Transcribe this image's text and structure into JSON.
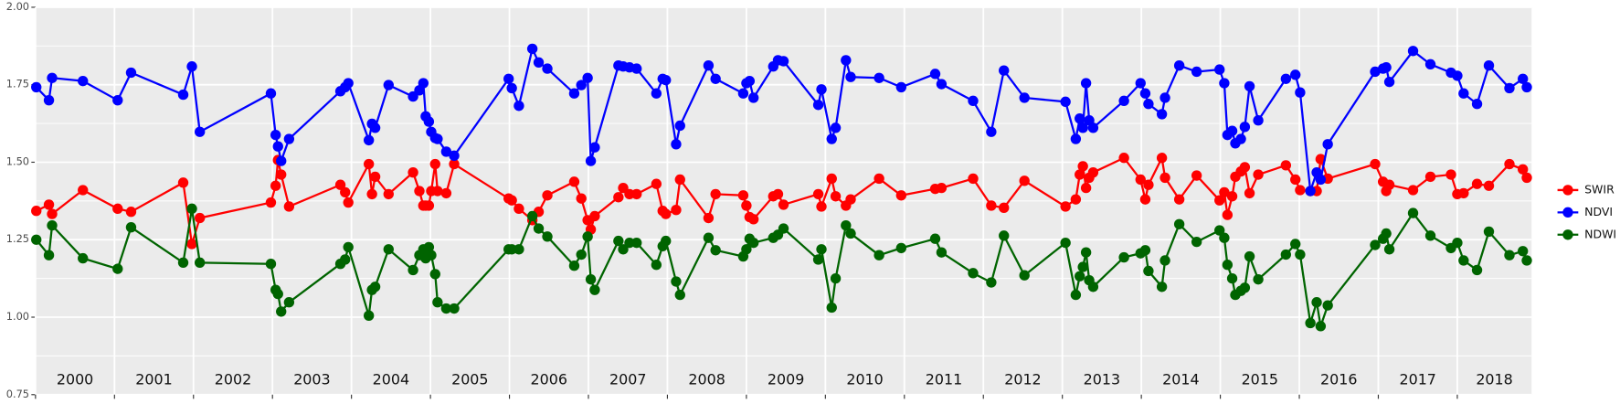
{
  "chart_data": {
    "type": "line",
    "xlim": [
      2000,
      2018.94
    ],
    "xticks": [
      2000,
      2001,
      2002,
      2003,
      2004,
      2005,
      2006,
      2007,
      2008,
      2009,
      2010,
      2011,
      2012,
      2013,
      2014,
      2015,
      2016,
      2017,
      2018
    ],
    "year_labels": [
      "2000",
      "2001",
      "2002",
      "2003",
      "2004",
      "2005",
      "2006",
      "2007",
      "2008",
      "2009",
      "2010",
      "2011",
      "2012",
      "2013",
      "2014",
      "2015",
      "2016",
      "2017",
      "2018"
    ],
    "ylim": [
      0.75,
      2.0
    ],
    "yticks": [
      {
        "value": 0.75,
        "label": "0.75"
      },
      {
        "value": 1.0,
        "label": "1.00"
      },
      {
        "value": 1.25,
        "label": "1.25"
      },
      {
        "value": 1.5,
        "label": "1.50"
      },
      {
        "value": 1.75,
        "label": "1.75"
      },
      {
        "value": 2.0,
        "label": "2.00"
      }
    ],
    "grid": true,
    "legend": "right",
    "x": [
      2000.01,
      2000.17,
      2000.21,
      2000.6,
      2001.04,
      2001.21,
      2001.87,
      2001.98,
      2002.08,
      2002.98,
      2003.04,
      2003.07,
      2003.11,
      2003.21,
      2003.86,
      2003.92,
      2003.96,
      2004.22,
      2004.26,
      2004.3,
      2004.47,
      2004.78,
      2004.86,
      2004.91,
      2004.94,
      2004.98,
      2005.01,
      2005.06,
      2005.09,
      2005.2,
      2005.3,
      2005.99,
      2006.03,
      2006.12,
      2006.29,
      2006.37,
      2006.48,
      2006.82,
      2006.91,
      2006.99,
      2007.03,
      2007.08,
      2007.38,
      2007.44,
      2007.52,
      2007.61,
      2007.86,
      2007.94,
      2007.98,
      2008.11,
      2008.16,
      2008.52,
      2008.61,
      2008.96,
      2009.0,
      2009.04,
      2009.09,
      2009.34,
      2009.4,
      2009.47,
      2009.91,
      2009.95,
      2010.08,
      2010.13,
      2010.26,
      2010.32,
      2010.68,
      2010.96,
      2011.39,
      2011.47,
      2011.87,
      2012.1,
      2012.26,
      2012.52,
      2013.04,
      2013.17,
      2013.22,
      2013.26,
      2013.3,
      2013.34,
      2013.39,
      2013.78,
      2013.99,
      2014.05,
      2014.09,
      2014.26,
      2014.3,
      2014.48,
      2014.7,
      2014.99,
      2015.05,
      2015.09,
      2015.15,
      2015.19,
      2015.26,
      2015.31,
      2015.37,
      2015.48,
      2015.83,
      2015.95,
      2016.01,
      2016.14,
      2016.22,
      2016.27,
      2016.36,
      2016.96,
      2017.06,
      2017.1,
      2017.14,
      2017.44,
      2017.66,
      2017.92,
      2018.0,
      2018.08,
      2018.25,
      2018.4,
      2018.66,
      2018.83,
      2018.88
    ],
    "series": [
      {
        "name": "SWIR",
        "color": "#ff0000",
        "values": [
          1.343,
          1.363,
          1.333,
          1.41,
          1.35,
          1.34,
          1.434,
          1.236,
          1.32,
          1.37,
          1.424,
          1.507,
          1.46,
          1.357,
          1.427,
          1.403,
          1.37,
          1.494,
          1.397,
          1.453,
          1.397,
          1.467,
          1.407,
          1.36,
          1.36,
          1.36,
          1.407,
          1.494,
          1.407,
          1.4,
          1.494,
          1.383,
          1.377,
          1.35,
          1.313,
          1.34,
          1.393,
          1.437,
          1.383,
          1.313,
          1.283,
          1.326,
          1.387,
          1.417,
          1.397,
          1.397,
          1.43,
          1.343,
          1.333,
          1.346,
          1.444,
          1.32,
          1.397,
          1.393,
          1.36,
          1.323,
          1.316,
          1.39,
          1.397,
          1.363,
          1.397,
          1.357,
          1.447,
          1.39,
          1.36,
          1.38,
          1.447,
          1.393,
          1.414,
          1.417,
          1.447,
          1.36,
          1.353,
          1.44,
          1.357,
          1.38,
          1.46,
          1.487,
          1.417,
          1.45,
          1.467,
          1.514,
          1.444,
          1.38,
          1.427,
          1.514,
          1.45,
          1.38,
          1.457,
          1.377,
          1.403,
          1.33,
          1.39,
          1.453,
          1.47,
          1.484,
          1.4,
          1.46,
          1.49,
          1.444,
          1.41,
          1.407,
          1.407,
          1.51,
          1.447,
          1.494,
          1.437,
          1.407,
          1.427,
          1.41,
          1.453,
          1.46,
          1.397,
          1.4,
          1.43,
          1.424,
          1.494,
          1.477,
          1.45
        ]
      },
      {
        "name": "NDVI",
        "color": "#0000ff",
        "values": [
          1.742,
          1.7,
          1.772,
          1.762,
          1.7,
          1.789,
          1.718,
          1.809,
          1.598,
          1.722,
          1.588,
          1.551,
          1.504,
          1.575,
          1.729,
          1.742,
          1.755,
          1.571,
          1.624,
          1.611,
          1.749,
          1.712,
          1.732,
          1.755,
          1.648,
          1.631,
          1.598,
          1.578,
          1.575,
          1.534,
          1.521,
          1.769,
          1.739,
          1.682,
          1.866,
          1.822,
          1.802,
          1.722,
          1.749,
          1.772,
          1.504,
          1.548,
          1.812,
          1.809,
          1.806,
          1.802,
          1.722,
          1.769,
          1.765,
          1.558,
          1.618,
          1.812,
          1.769,
          1.722,
          1.755,
          1.762,
          1.708,
          1.809,
          1.829,
          1.826,
          1.685,
          1.735,
          1.575,
          1.611,
          1.829,
          1.775,
          1.772,
          1.742,
          1.785,
          1.752,
          1.698,
          1.598,
          1.796,
          1.708,
          1.695,
          1.575,
          1.641,
          1.611,
          1.755,
          1.635,
          1.611,
          1.698,
          1.755,
          1.722,
          1.688,
          1.655,
          1.708,
          1.812,
          1.792,
          1.799,
          1.755,
          1.588,
          1.601,
          1.561,
          1.575,
          1.614,
          1.745,
          1.635,
          1.769,
          1.782,
          1.725,
          1.407,
          1.467,
          1.444,
          1.558,
          1.792,
          1.802,
          1.806,
          1.759,
          1.859,
          1.816,
          1.789,
          1.779,
          1.722,
          1.688,
          1.812,
          1.739,
          1.769,
          1.742
        ]
      },
      {
        "name": "NDWI",
        "color": "#006400",
        "values": [
          1.25,
          1.2,
          1.296,
          1.19,
          1.156,
          1.29,
          1.176,
          1.35,
          1.176,
          1.172,
          1.088,
          1.075,
          1.018,
          1.048,
          1.172,
          1.186,
          1.226,
          1.005,
          1.088,
          1.098,
          1.219,
          1.152,
          1.2,
          1.219,
          1.19,
          1.226,
          1.2,
          1.139,
          1.048,
          1.028,
          1.028,
          1.219,
          1.219,
          1.219,
          1.326,
          1.286,
          1.26,
          1.166,
          1.202,
          1.26,
          1.122,
          1.088,
          1.246,
          1.219,
          1.24,
          1.24,
          1.169,
          1.229,
          1.246,
          1.115,
          1.072,
          1.256,
          1.216,
          1.196,
          1.219,
          1.253,
          1.24,
          1.256,
          1.266,
          1.286,
          1.186,
          1.219,
          1.031,
          1.125,
          1.296,
          1.27,
          1.2,
          1.223,
          1.253,
          1.209,
          1.142,
          1.112,
          1.263,
          1.135,
          1.24,
          1.072,
          1.132,
          1.162,
          1.209,
          1.119,
          1.098,
          1.193,
          1.206,
          1.216,
          1.149,
          1.098,
          1.183,
          1.3,
          1.243,
          1.28,
          1.256,
          1.169,
          1.125,
          1.072,
          1.085,
          1.095,
          1.196,
          1.122,
          1.202,
          1.236,
          1.202,
          0.981,
          1.048,
          0.971,
          1.038,
          1.233,
          1.253,
          1.27,
          1.219,
          1.336,
          1.263,
          1.223,
          1.24,
          1.183,
          1.152,
          1.276,
          1.2,
          1.213,
          1.183
        ]
      }
    ]
  }
}
